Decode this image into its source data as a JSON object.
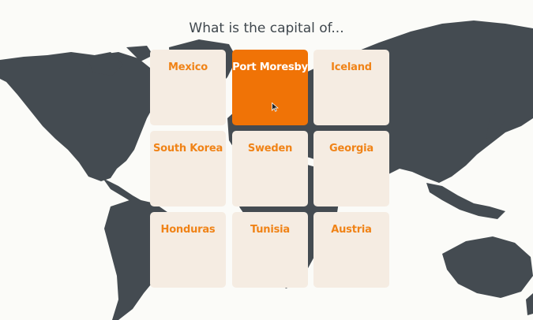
{
  "game": {
    "prompt": "What is the capital of...",
    "selected_index": 1,
    "countries": [
      {
        "label": "Mexico"
      },
      {
        "label": "Port Moresby"
      },
      {
        "label": "Iceland"
      },
      {
        "label": "South Korea"
      },
      {
        "label": "Sweden"
      },
      {
        "label": "Georgia"
      },
      {
        "label": "Honduras"
      },
      {
        "label": "Tunisia"
      },
      {
        "label": "Austria"
      }
    ]
  },
  "colors": {
    "background": "#fbfbf8",
    "map": "#444b51",
    "tile": "#f5ece2",
    "tile_text": "#f08317",
    "tile_selected": "#f07306",
    "tile_selected_text": "#ffffff"
  },
  "icons": [
    "mouse-pointer-icon"
  ]
}
